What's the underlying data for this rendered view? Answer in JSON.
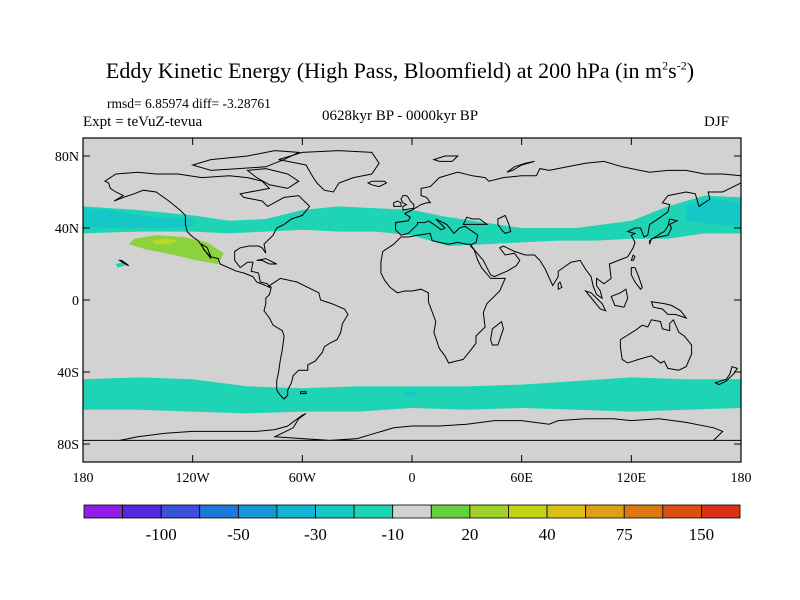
{
  "title": {
    "main": "Eddy Kinetic Energy (High Pass, Bloomfield) at 200 hPa (in m",
    "unit_exp1": "2",
    "unit_s": "s",
    "unit_exp2": "-2",
    "close": ")"
  },
  "stats": "rmsd= 6.85974 diff= -3.28761",
  "experiment": "Expt = teVuZ-tevua",
  "period": "0628kyr BP - 0000kyr BP",
  "season": "DJF",
  "map": {
    "lon_range": [
      -180,
      180
    ],
    "lat_range": [
      -90,
      90
    ],
    "background_color": "#d2d2d2",
    "lat_ticks": [
      {
        "lat": 80,
        "label": "80N"
      },
      {
        "lat": 40,
        "label": "40N"
      },
      {
        "lat": 0,
        "label": "0"
      },
      {
        "lat": -40,
        "label": "40S"
      },
      {
        "lat": -80,
        "label": "80S"
      }
    ],
    "lon_ticks": [
      {
        "lon": -180,
        "label": "180"
      },
      {
        "lon": -120,
        "label": "120W"
      },
      {
        "lon": -60,
        "label": "60W"
      },
      {
        "lon": 0,
        "label": "0"
      },
      {
        "lon": 60,
        "label": "60E"
      },
      {
        "lon": 120,
        "label": "120E"
      },
      {
        "lon": 180,
        "label": "180"
      }
    ],
    "bands": [
      {
        "name": "north-pacific-cyan",
        "color": "#1ed4b4",
        "top": [
          [
            -180,
            52
          ],
          [
            -150,
            50
          ],
          [
            -120,
            47
          ],
          [
            -100,
            44
          ],
          [
            -80,
            45
          ],
          [
            -60,
            50
          ],
          [
            -40,
            52
          ],
          [
            -20,
            51
          ],
          [
            0,
            50
          ],
          [
            20,
            46
          ],
          [
            40,
            43
          ],
          [
            60,
            40
          ],
          [
            90,
            40
          ],
          [
            120,
            44
          ],
          [
            140,
            52
          ],
          [
            160,
            58
          ],
          [
            180,
            57
          ]
        ],
        "bottom": [
          [
            180,
            37
          ],
          [
            160,
            37
          ],
          [
            140,
            34
          ],
          [
            120,
            34
          ],
          [
            100,
            33
          ],
          [
            80,
            33
          ],
          [
            60,
            32
          ],
          [
            40,
            31
          ],
          [
            20,
            30
          ],
          [
            0,
            36
          ],
          [
            -20,
            38
          ],
          [
            -40,
            38
          ],
          [
            -60,
            39
          ],
          [
            -80,
            38
          ],
          [
            -100,
            37
          ],
          [
            -120,
            38
          ],
          [
            -150,
            38
          ],
          [
            -180,
            37
          ]
        ]
      },
      {
        "name": "north-pacific-core",
        "color": "#14c8c8",
        "top": [
          [
            -180,
            51
          ],
          [
            -165,
            50
          ],
          [
            -150,
            47
          ],
          [
            -140,
            46
          ],
          [
            -130,
            46
          ],
          [
            -120,
            45
          ]
        ],
        "bottom": [
          [
            -120,
            41
          ],
          [
            -135,
            40
          ],
          [
            -150,
            40
          ],
          [
            -165,
            40
          ],
          [
            -180,
            41
          ]
        ]
      },
      {
        "name": "north-pacific-core-east",
        "color": "#14c8c8",
        "top": [
          [
            150,
            53
          ],
          [
            165,
            56
          ],
          [
            180,
            54
          ]
        ],
        "bottom": [
          [
            180,
            41
          ],
          [
            165,
            42
          ],
          [
            150,
            44
          ]
        ]
      },
      {
        "name": "southern-ocean-cyan",
        "color": "#1ed4b4",
        "top": [
          [
            -180,
            -44
          ],
          [
            -150,
            -43
          ],
          [
            -120,
            -44
          ],
          [
            -90,
            -48
          ],
          [
            -60,
            -49
          ],
          [
            -30,
            -48
          ],
          [
            0,
            -48
          ],
          [
            30,
            -48
          ],
          [
            60,
            -47
          ],
          [
            90,
            -45
          ],
          [
            120,
            -43
          ],
          [
            150,
            -44
          ],
          [
            180,
            -44
          ]
        ],
        "bottom": [
          [
            180,
            -60
          ],
          [
            150,
            -61
          ],
          [
            120,
            -62
          ],
          [
            90,
            -61
          ],
          [
            60,
            -60
          ],
          [
            30,
            -61
          ],
          [
            0,
            -60
          ],
          [
            -30,
            -62
          ],
          [
            -60,
            -62
          ],
          [
            -90,
            -63
          ],
          [
            -120,
            -62
          ],
          [
            -150,
            -61
          ],
          [
            -180,
            -61
          ]
        ]
      }
    ],
    "anomaly_cells": [
      {
        "name": "subtropical-pacific-positive",
        "color": "#8cd23c",
        "outline": [
          [
            -152,
            34
          ],
          [
            -140,
            36
          ],
          [
            -125,
            35
          ],
          [
            -112,
            32
          ],
          [
            -103,
            26
          ],
          [
            -106,
            20
          ],
          [
            -118,
            22
          ],
          [
            -130,
            25
          ],
          [
            -145,
            28
          ],
          [
            -155,
            31
          ]
        ]
      },
      {
        "name": "subtropical-pacific-core",
        "color": "#b4dc28",
        "outline": [
          [
            -143,
            33
          ],
          [
            -135,
            34
          ],
          [
            -128,
            33
          ],
          [
            -132,
            31
          ],
          [
            -140,
            31
          ]
        ]
      },
      {
        "name": "hawaii-spot",
        "color": "#1ed4b4",
        "outline": [
          [
            -162,
            20
          ],
          [
            -158,
            21
          ],
          [
            -157,
            19
          ],
          [
            -161,
            18
          ]
        ]
      },
      {
        "name": "south-atlantic-spot",
        "color": "#14c8c8",
        "outline": [
          [
            -4,
            -51
          ],
          [
            2,
            -51
          ],
          [
            3,
            -53
          ],
          [
            -3,
            -53
          ]
        ]
      }
    ],
    "coast_color": "#000000"
  },
  "colorbar": {
    "colors": [
      "#8c1ee6",
      "#5a28dc",
      "#3c50dc",
      "#1e78dc",
      "#1496dc",
      "#14b4d2",
      "#14c8c8",
      "#1ed4b4",
      "#d2d2d2",
      "#64d23c",
      "#a0d228",
      "#c8d214",
      "#dcbe14",
      "#dca014",
      "#dc7814",
      "#dc5014",
      "#dc3214"
    ],
    "labels": [
      {
        "after_box": 1,
        "text": "-100"
      },
      {
        "after_box": 3,
        "text": "-50"
      },
      {
        "after_box": 5,
        "text": "-30"
      },
      {
        "after_box": 7,
        "text": "-10"
      },
      {
        "after_box": 9,
        "text": "20"
      },
      {
        "after_box": 11,
        "text": "40"
      },
      {
        "after_box": 13,
        "text": "75"
      },
      {
        "after_box": 15,
        "text": "150"
      }
    ]
  }
}
